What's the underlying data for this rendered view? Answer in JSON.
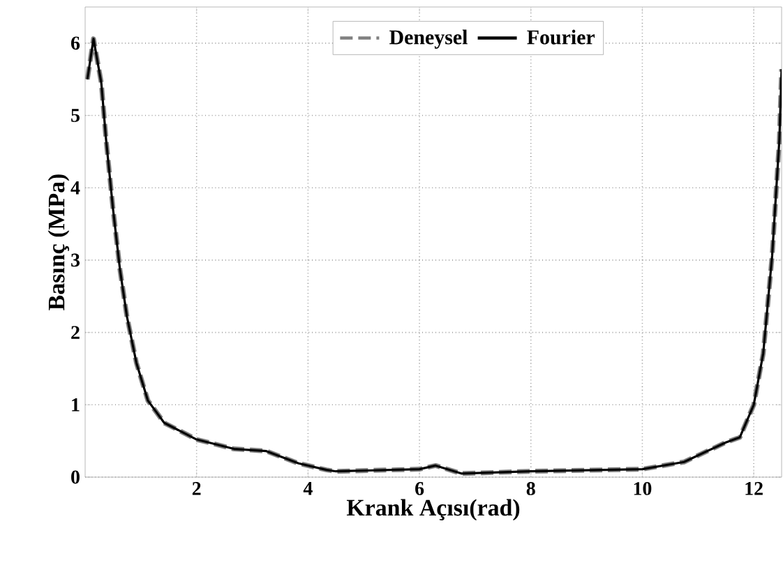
{
  "chart_data": {
    "type": "line",
    "xlabel": "Krank Açısı(rad)",
    "ylabel": "Basınç (MPa)",
    "xlim": [
      0,
      12.5
    ],
    "ylim": [
      0,
      6.5
    ],
    "xticks": [
      2,
      4,
      6,
      8,
      10,
      12
    ],
    "yticks": [
      0,
      1,
      2,
      3,
      4,
      5,
      6
    ],
    "grid": true,
    "legend": "top",
    "series": [
      {
        "name": "Deneysel",
        "color": "#808080",
        "line_style": "dashed",
        "x": [
          0.04,
          0.15,
          0.29,
          0.375,
          0.5,
          0.625,
          0.75,
          0.92,
          1.125,
          1.42,
          2,
          2.67,
          3.25,
          3.83,
          4.33,
          4.5,
          6.0,
          6.29,
          6.75,
          8,
          10,
          10.75,
          11.5,
          11.75,
          12,
          12.17,
          12.33,
          12.46,
          12.5
        ],
        "values": [
          5.5,
          6.06,
          5.45,
          4.67,
          3.71,
          2.87,
          2.22,
          1.58,
          1.06,
          0.75,
          0.52,
          0.39,
          0.36,
          0.19,
          0.1,
          0.08,
          0.11,
          0.16,
          0.05,
          0.08,
          0.11,
          0.21,
          0.48,
          0.55,
          1.0,
          1.71,
          3.06,
          4.67,
          5.64
        ]
      },
      {
        "name": "Fourier",
        "color": "#000000",
        "line_style": "solid",
        "x": [
          0.04,
          0.15,
          0.29,
          0.375,
          0.5,
          0.625,
          0.75,
          0.92,
          1.125,
          1.42,
          2,
          2.67,
          3.25,
          3.83,
          4.33,
          4.5,
          6.0,
          6.29,
          6.75,
          8,
          10,
          10.75,
          11.5,
          11.75,
          12,
          12.17,
          12.33,
          12.46,
          12.5
        ],
        "values": [
          5.5,
          6.06,
          5.45,
          4.67,
          3.71,
          2.87,
          2.22,
          1.58,
          1.06,
          0.75,
          0.52,
          0.39,
          0.36,
          0.19,
          0.1,
          0.08,
          0.11,
          0.16,
          0.05,
          0.08,
          0.11,
          0.21,
          0.48,
          0.55,
          1.0,
          1.71,
          3.06,
          4.67,
          5.64
        ]
      }
    ]
  }
}
